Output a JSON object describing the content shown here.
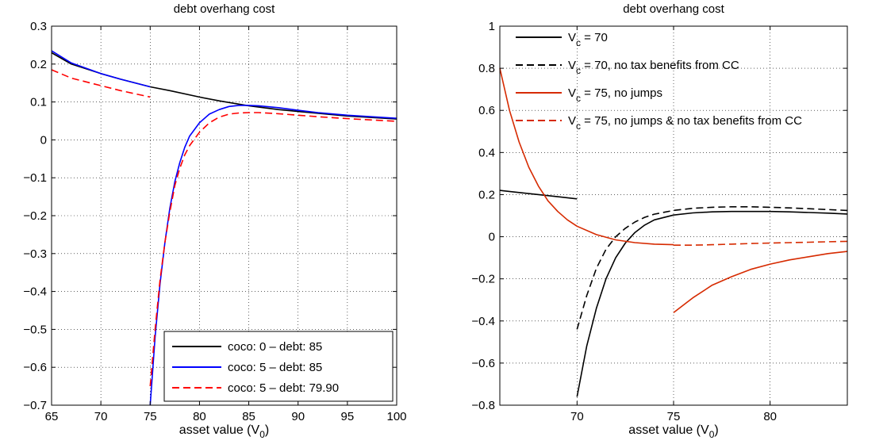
{
  "chart_data": [
    {
      "type": "line",
      "title": "debt overhang cost",
      "xlabel": "asset value (V",
      "xlabel_sub": "0",
      "xlabel_close": ")",
      "ylabel": "",
      "xlim": [
        65,
        100
      ],
      "ylim": [
        -0.7,
        0.3
      ],
      "xticks": [
        65,
        70,
        75,
        80,
        85,
        90,
        95,
        100
      ],
      "xtick_labels": [
        "65",
        "70",
        "75",
        "80",
        "85",
        "90",
        "95",
        "100"
      ],
      "yticks": [
        0.3,
        0.2,
        0.1,
        0,
        -0.1,
        -0.2,
        -0.3,
        -0.4,
        -0.5,
        -0.6,
        -0.7
      ],
      "ytick_labels": [
        "0.3",
        "0.2",
        "0.1",
        "0",
        "−0.1",
        "−0.2",
        "−0.3",
        "−0.4",
        "−0.5",
        "−0.6",
        "−0.7"
      ],
      "grid": true,
      "legend_position": "bottom-right",
      "series": [
        {
          "name": "coco: 0 – debt: 85",
          "color": "#000000",
          "dash": "solid",
          "segments": [
            [
              [
                65,
                0.23
              ],
              [
                67,
                0.2
              ],
              [
                70,
                0.175
              ],
              [
                72,
                0.16
              ],
              [
                75,
                0.14
              ],
              [
                77,
                0.13
              ],
              [
                80,
                0.113
              ],
              [
                82,
                0.103
              ],
              [
                85,
                0.09
              ],
              [
                88,
                0.08
              ],
              [
                90,
                0.075
              ],
              [
                95,
                0.063
              ],
              [
                100,
                0.055
              ]
            ]
          ]
        },
        {
          "name": "coco: 5 – debt: 85",
          "color": "#0000ff",
          "dash": "solid",
          "segments": [
            [
              [
                65,
                0.235
              ],
              [
                67,
                0.203
              ],
              [
                70,
                0.175
              ],
              [
                72,
                0.16
              ],
              [
                75,
                0.14
              ]
            ],
            [
              [
                75,
                -0.7
              ],
              [
                75.5,
                -0.52
              ],
              [
                76,
                -0.38
              ],
              [
                76.5,
                -0.27
              ],
              [
                77,
                -0.18
              ],
              [
                77.5,
                -0.11
              ],
              [
                78,
                -0.06
              ],
              [
                78.5,
                -0.02
              ],
              [
                79,
                0.01
              ],
              [
                80,
                0.045
              ],
              [
                81,
                0.068
              ],
              [
                82,
                0.08
              ],
              [
                83,
                0.088
              ],
              [
                84,
                0.091
              ],
              [
                85,
                0.091
              ],
              [
                86,
                0.09
              ],
              [
                88,
                0.085
              ],
              [
                90,
                0.078
              ],
              [
                92,
                0.072
              ],
              [
                95,
                0.065
              ],
              [
                100,
                0.057
              ]
            ]
          ]
        },
        {
          "name": "coco: 5 – debt: 79.90",
          "color": "#ff0000",
          "dash": "dashed",
          "segments": [
            [
              [
                65,
                0.185
              ],
              [
                67,
                0.163
              ],
              [
                70,
                0.143
              ],
              [
                72,
                0.13
              ],
              [
                75,
                0.113
              ]
            ],
            [
              [
                75,
                -0.65
              ],
              [
                75.5,
                -0.5
              ],
              [
                76,
                -0.37
              ],
              [
                76.5,
                -0.27
              ],
              [
                77,
                -0.19
              ],
              [
                77.5,
                -0.12
              ],
              [
                78,
                -0.075
              ],
              [
                78.5,
                -0.04
              ],
              [
                79,
                -0.015
              ],
              [
                80,
                0.02
              ],
              [
                81,
                0.045
              ],
              [
                82,
                0.06
              ],
              [
                83,
                0.068
              ],
              [
                84,
                0.071
              ],
              [
                85,
                0.072
              ],
              [
                86,
                0.072
              ],
              [
                88,
                0.069
              ],
              [
                90,
                0.065
              ],
              [
                92,
                0.061
              ],
              [
                95,
                0.056
              ],
              [
                100,
                0.049
              ]
            ]
          ]
        }
      ]
    },
    {
      "type": "line",
      "title": "debt overhang cost",
      "xlabel": "asset value (V",
      "xlabel_sub": "0",
      "xlabel_close": ")",
      "ylabel": "",
      "xlim": [
        66,
        84
      ],
      "ylim": [
        -0.8,
        1.0
      ],
      "xticks": [
        70,
        75,
        80
      ],
      "xtick_labels": [
        "70",
        "75",
        "80"
      ],
      "yticks": [
        1,
        0.8,
        0.6,
        0.4,
        0.2,
        0,
        -0.2,
        -0.4,
        -0.6,
        -0.8
      ],
      "ytick_labels": [
        "1",
        "0.8",
        "0.6",
        "0.4",
        "0.2",
        "0",
        "−0.2",
        "−0.4",
        "−0.6",
        "−0.8"
      ],
      "grid": true,
      "legend_position": "top-left",
      "series": [
        {
          "name_main": "V",
          "name_sub": "c",
          "name_rest": " = 70",
          "color": "#000000",
          "dash": "solid",
          "segments": [
            [
              [
                66,
                0.22
              ],
              [
                67,
                0.21
              ],
              [
                68,
                0.2
              ],
              [
                69,
                0.19
              ],
              [
                70,
                0.18
              ]
            ],
            [
              [
                70,
                -0.76
              ],
              [
                70.5,
                -0.52
              ],
              [
                71,
                -0.34
              ],
              [
                71.5,
                -0.2
              ],
              [
                72,
                -0.1
              ],
              [
                72.5,
                -0.03
              ],
              [
                73,
                0.02
              ],
              [
                73.5,
                0.055
              ],
              [
                74,
                0.08
              ],
              [
                75,
                0.103
              ],
              [
                76,
                0.113
              ],
              [
                77,
                0.118
              ],
              [
                78,
                0.12
              ],
              [
                79,
                0.12
              ],
              [
                80,
                0.12
              ],
              [
                81,
                0.118
              ],
              [
                82,
                0.115
              ],
              [
                83,
                0.112
              ],
              [
                84,
                0.108
              ]
            ]
          ]
        },
        {
          "name_main": "V",
          "name_sub": "c",
          "name_rest": " = 70, no tax benefits from CC",
          "color": "#000000",
          "dash": "dashed",
          "segments": [
            [
              [
                70,
                -0.44
              ],
              [
                70.5,
                -0.28
              ],
              [
                71,
                -0.15
              ],
              [
                71.5,
                -0.06
              ],
              [
                72,
                0.0
              ],
              [
                72.5,
                0.04
              ],
              [
                73,
                0.07
              ],
              [
                73.5,
                0.092
              ],
              [
                74,
                0.107
              ],
              [
                75,
                0.125
              ],
              [
                76,
                0.135
              ],
              [
                77,
                0.14
              ],
              [
                78,
                0.142
              ],
              [
                79,
                0.142
              ],
              [
                80,
                0.14
              ],
              [
                81,
                0.137
              ],
              [
                82,
                0.133
              ],
              [
                83,
                0.129
              ],
              [
                84,
                0.125
              ]
            ]
          ]
        },
        {
          "name_main": "V",
          "name_sub": "c",
          "name_rest": " = 75, no jumps",
          "color": "#d62a00",
          "dash": "solid",
          "segments": [
            [
              [
                66,
                0.8
              ],
              [
                66.5,
                0.6
              ],
              [
                67,
                0.45
              ],
              [
                67.5,
                0.33
              ],
              [
                68,
                0.24
              ],
              [
                68.5,
                0.17
              ],
              [
                69,
                0.12
              ],
              [
                69.5,
                0.08
              ],
              [
                70,
                0.05
              ],
              [
                71,
                0.01
              ],
              [
                72,
                -0.015
              ],
              [
                73,
                -0.028
              ],
              [
                74,
                -0.035
              ],
              [
                75,
                -0.038
              ]
            ],
            [
              [
                75,
                -0.36
              ],
              [
                76,
                -0.29
              ],
              [
                77,
                -0.23
              ],
              [
                78,
                -0.19
              ],
              [
                79,
                -0.155
              ],
              [
                80,
                -0.13
              ],
              [
                81,
                -0.11
              ],
              [
                82,
                -0.095
              ],
              [
                83,
                -0.08
              ],
              [
                84,
                -0.07
              ]
            ]
          ]
        },
        {
          "name_main": "V",
          "name_sub": "c",
          "name_rest": " = 75, no jumps & no tax benefits from CC",
          "color": "#d62a00",
          "dash": "dashed",
          "segments": [
            [
              [
                75,
                -0.04
              ],
              [
                76,
                -0.04
              ],
              [
                77,
                -0.038
              ],
              [
                78,
                -0.035
              ],
              [
                79,
                -0.032
              ],
              [
                80,
                -0.03
              ],
              [
                81,
                -0.028
              ],
              [
                82,
                -0.026
              ],
              [
                83,
                -0.024
              ],
              [
                84,
                -0.022
              ]
            ]
          ]
        }
      ]
    }
  ]
}
